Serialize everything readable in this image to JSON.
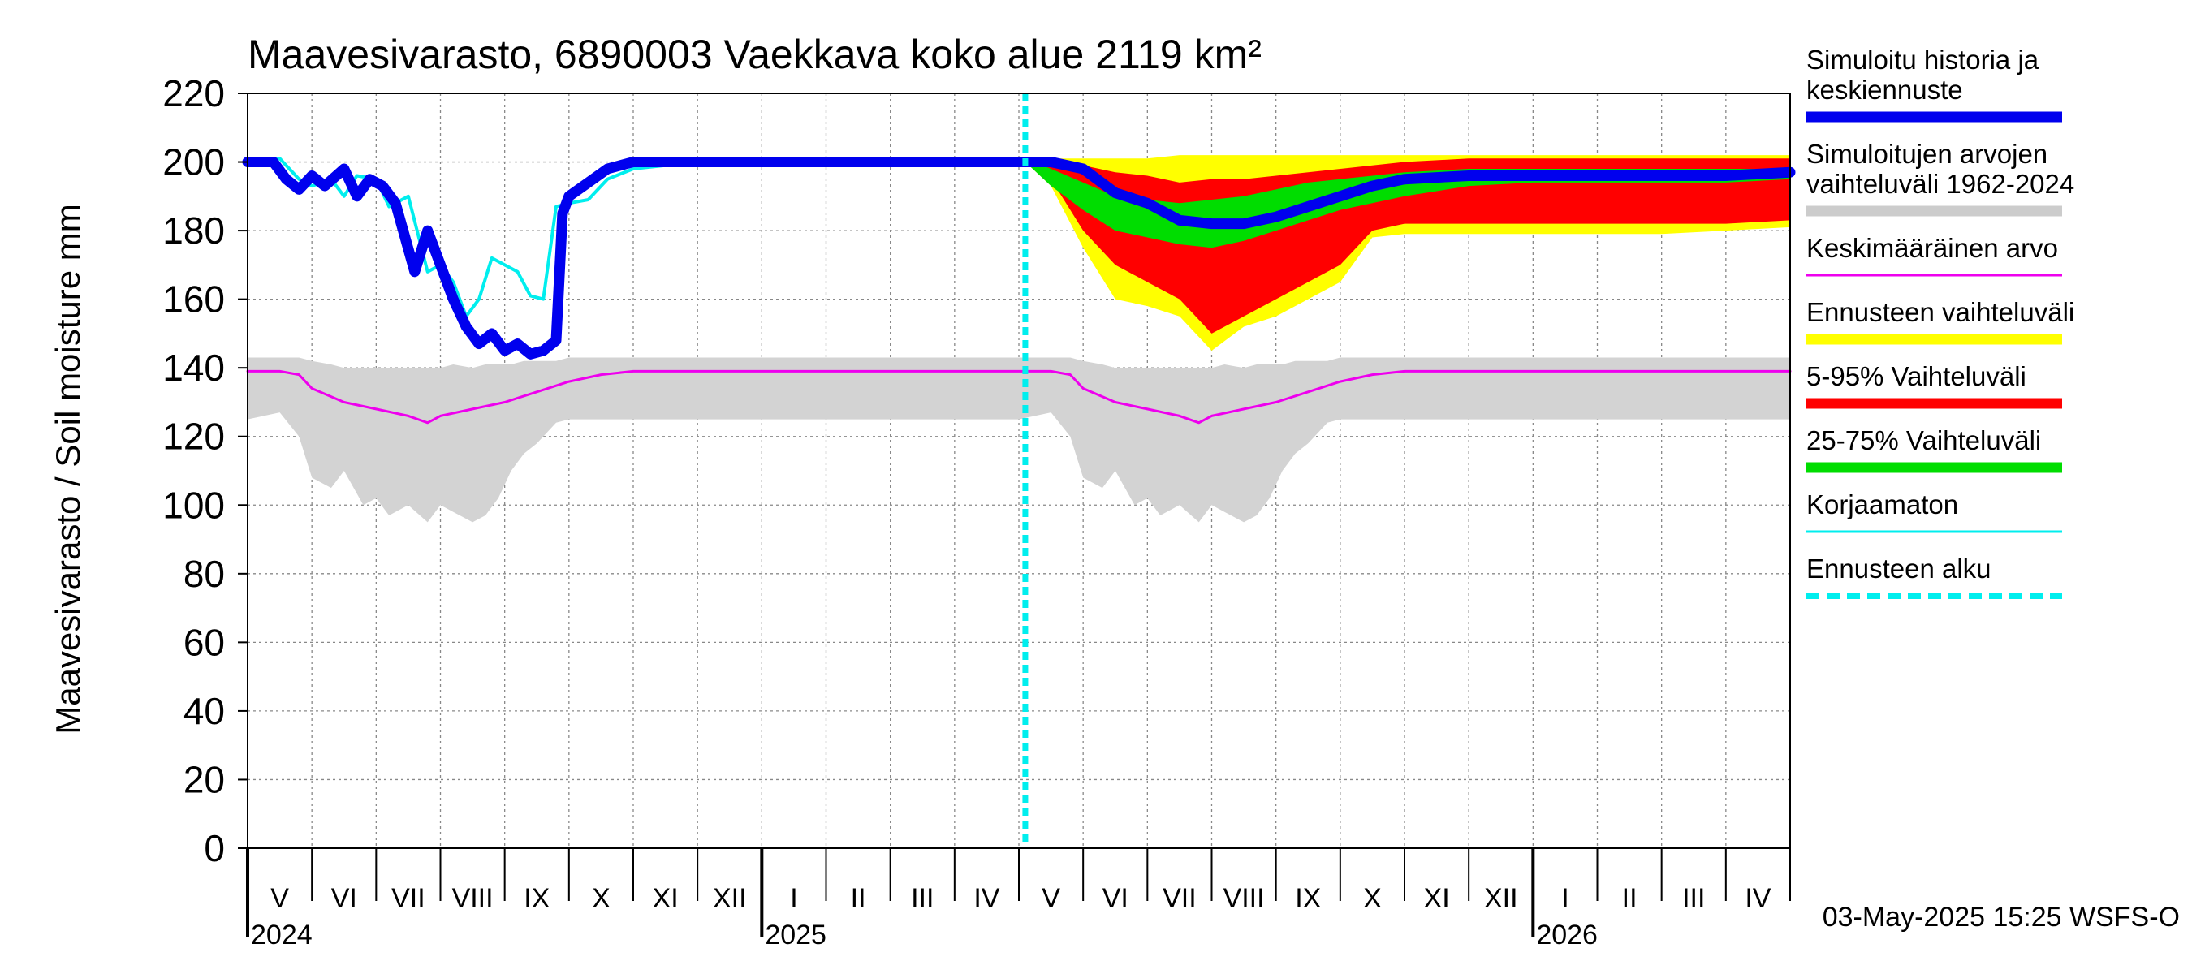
{
  "chart_data": {
    "type": "area",
    "title": "Maavesivarasto, 6890003 Vaekkava koko alue 2119 km²",
    "ylabel": "Maavesivarasto / Soil moisture   mm",
    "ylim": [
      0,
      220
    ],
    "yticks": [
      0,
      20,
      40,
      60,
      80,
      100,
      120,
      140,
      160,
      180,
      200,
      220
    ],
    "x_unit": "months since 2024-05-01",
    "xlim": [
      0,
      24
    ],
    "months": [
      "V",
      "VI",
      "VII",
      "VIII",
      "IX",
      "X",
      "XI",
      "XII",
      "I",
      "II",
      "III",
      "IV",
      "V",
      "VI",
      "VII",
      "VIII",
      "IX",
      "X",
      "XI",
      "XII",
      "I",
      "II",
      "III",
      "IV"
    ],
    "years": [
      {
        "label": "2024",
        "at": 0
      },
      {
        "label": "2025",
        "at": 8
      },
      {
        "label": "2026",
        "at": 20
      }
    ],
    "forecast_start": 12.1,
    "footer": "03-May-2025 15:25 WSFS-O",
    "legend": [
      {
        "key": "simulated",
        "label": [
          "Simuloitu historia ja",
          "keskiennuste"
        ],
        "color": "#0000ee",
        "style": "thick"
      },
      {
        "key": "range_hist",
        "label": [
          "Simuloitujen arvojen",
          "vaihteluväli 1962-2024"
        ],
        "color": "#cccccc",
        "style": "thick"
      },
      {
        "key": "mean",
        "label": [
          "Keskimääräinen arvo"
        ],
        "color": "#ee00ee",
        "style": "thin"
      },
      {
        "key": "fc_range",
        "label": [
          "Ennusteen vaihteluväli"
        ],
        "color": "#ffff00",
        "style": "thick"
      },
      {
        "key": "p5_95",
        "label": [
          "5-95% Vaihteluväli"
        ],
        "color": "#ff0000",
        "style": "thick"
      },
      {
        "key": "p25_75",
        "label": [
          "25-75% Vaihteluväli"
        ],
        "color": "#00dd00",
        "style": "thick"
      },
      {
        "key": "uncorrected",
        "label": [
          "Korjaamaton"
        ],
        "color": "#00eeee",
        "style": "thin"
      },
      {
        "key": "fc_start",
        "label": [
          "Ennusteen alku"
        ],
        "color": "#00eeee",
        "style": "dashed"
      }
    ],
    "series": [
      {
        "name": "Simuloitujen arvojen vaihteluväli 1962-2024",
        "x": [
          0,
          0.5,
          0.8,
          1,
          1.3,
          1.5,
          1.8,
          2,
          2.2,
          2.5,
          2.8,
          3,
          3.2,
          3.5,
          3.7,
          3.9,
          4.1,
          4.3,
          4.5,
          4.8,
          5,
          5.5,
          6,
          7,
          8,
          9,
          10,
          11,
          12
        ],
        "upper": [
          143,
          143,
          143,
          142,
          141,
          140,
          140,
          140,
          140,
          140,
          140,
          140,
          141,
          140,
          141,
          141,
          141,
          142,
          142,
          142,
          143,
          143,
          143,
          143,
          143,
          143,
          143,
          143,
          143
        ],
        "lower": [
          125,
          127,
          120,
          108,
          105,
          110,
          100,
          102,
          97,
          100,
          95,
          100,
          98,
          95,
          97,
          102,
          110,
          115,
          118,
          124,
          125,
          125,
          125,
          125,
          125,
          125,
          125,
          125,
          125
        ]
      },
      {
        "name": "Simuloitujen arvojen vaihteluväli (ennuste)",
        "x": [
          12,
          12.5,
          12.8,
          13,
          13.3,
          13.5,
          13.8,
          14,
          14.2,
          14.5,
          14.8,
          15,
          15.2,
          15.5,
          15.7,
          15.9,
          16.1,
          16.3,
          16.5,
          16.8,
          17,
          17.5,
          18,
          19,
          20,
          21,
          22,
          23,
          24
        ],
        "upper": [
          143,
          143,
          143,
          142,
          141,
          140,
          140,
          140,
          140,
          140,
          140,
          140,
          141,
          140,
          141,
          141,
          141,
          142,
          142,
          142,
          143,
          143,
          143,
          143,
          143,
          143,
          143,
          143,
          143
        ],
        "lower": [
          125,
          127,
          120,
          108,
          105,
          110,
          100,
          102,
          97,
          100,
          95,
          100,
          98,
          95,
          97,
          102,
          110,
          115,
          118,
          124,
          125,
          125,
          125,
          125,
          125,
          125,
          125,
          125,
          125
        ]
      },
      {
        "name": "Keskimääräinen arvo",
        "x": [
          0,
          0.5,
          0.8,
          1,
          1.5,
          2,
          2.5,
          2.8,
          3,
          3.5,
          4,
          4.5,
          5,
          5.5,
          6,
          7,
          8,
          9,
          10,
          11,
          12,
          12.5,
          12.8,
          13,
          13.5,
          14,
          14.5,
          14.8,
          15,
          15.5,
          16,
          16.5,
          17,
          17.5,
          18,
          19,
          20,
          21,
          22,
          23,
          24
        ],
        "y": [
          139,
          139,
          138,
          134,
          130,
          128,
          126,
          124,
          126,
          128,
          130,
          133,
          136,
          138,
          139,
          139,
          139,
          139,
          139,
          139,
          139,
          139,
          138,
          134,
          130,
          128,
          126,
          124,
          126,
          128,
          130,
          133,
          136,
          138,
          139,
          139,
          139,
          139,
          139,
          139,
          139
        ]
      },
      {
        "name": "Ennusteen vaihteluväli",
        "x": [
          12.1,
          12.5,
          13,
          13.5,
          14,
          14.5,
          15,
          15.5,
          16,
          16.5,
          17,
          17.5,
          18,
          19,
          20,
          21,
          22,
          23,
          24
        ],
        "upper": [
          201,
          201,
          201,
          201,
          201,
          202,
          202,
          202,
          202,
          202,
          202,
          202,
          202,
          202,
          202,
          202,
          202,
          202,
          202
        ],
        "lower": [
          200,
          193,
          175,
          160,
          158,
          155,
          145,
          152,
          155,
          160,
          165,
          178,
          179,
          179,
          179,
          179,
          179,
          180,
          181
        ]
      },
      {
        "name": "5-95% Vaihteluväli",
        "x": [
          12.1,
          12.5,
          13,
          13.5,
          14,
          14.5,
          15,
          15.5,
          16,
          16.5,
          17,
          17.5,
          18,
          19,
          20,
          21,
          22,
          23,
          24
        ],
        "upper": [
          201,
          200,
          199,
          197,
          196,
          194,
          195,
          195,
          196,
          197,
          198,
          199,
          200,
          201,
          201,
          201,
          201,
          201,
          201
        ],
        "lower": [
          200,
          195,
          180,
          170,
          165,
          160,
          150,
          155,
          160,
          165,
          170,
          180,
          182,
          182,
          182,
          182,
          182,
          182,
          183
        ]
      },
      {
        "name": "25-75% Vaihteluväli",
        "x": [
          12.1,
          12.5,
          13,
          13.5,
          14,
          14.5,
          15,
          15.5,
          16,
          16.5,
          17,
          17.5,
          18,
          19,
          20,
          21,
          22,
          23,
          24
        ],
        "upper": [
          201,
          198,
          194,
          190,
          189,
          188,
          189,
          190,
          192,
          194,
          195,
          196,
          197,
          198,
          198,
          198,
          198,
          198,
          198
        ],
        "lower": [
          200,
          193,
          186,
          180,
          178,
          176,
          175,
          177,
          180,
          183,
          186,
          188,
          190,
          193,
          194,
          194,
          194,
          194,
          195
        ]
      },
      {
        "name": "Korjaamaton",
        "x": [
          0,
          0.5,
          0.8,
          1,
          1.3,
          1.5,
          1.7,
          2,
          2.2,
          2.5,
          2.8,
          3,
          3.2,
          3.4,
          3.6,
          3.8,
          4,
          4.2,
          4.4,
          4.6,
          4.8,
          5,
          5.3,
          5.6,
          6,
          6.5,
          7,
          8,
          9,
          10,
          11,
          12.1
        ],
        "y": [
          199,
          201,
          195,
          193,
          195,
          190,
          196,
          195,
          187,
          190,
          168,
          170,
          165,
          155,
          160,
          172,
          170,
          168,
          161,
          160,
          187,
          188,
          189,
          195,
          198,
          199,
          199,
          200,
          200,
          200,
          200,
          200
        ]
      },
      {
        "name": "Simuloitu historia ja keskiennuste",
        "x": [
          0,
          0.4,
          0.6,
          0.8,
          1,
          1.2,
          1.5,
          1.7,
          1.9,
          2.1,
          2.3,
          2.6,
          2.8,
          3,
          3.2,
          3.4,
          3.6,
          3.8,
          4,
          4.2,
          4.4,
          4.6,
          4.8,
          4.9,
          5,
          5.3,
          5.6,
          6,
          6.5,
          7,
          8,
          9,
          10,
          11,
          12,
          12.5,
          13,
          13.5,
          14,
          14.5,
          15,
          15.5,
          16,
          16.5,
          17,
          17.5,
          18,
          19,
          20,
          21,
          22,
          23,
          24
        ],
        "y": [
          200,
          200,
          195,
          192,
          196,
          193,
          198,
          190,
          195,
          193,
          188,
          168,
          180,
          170,
          160,
          152,
          147,
          150,
          145,
          147,
          144,
          145,
          148,
          185,
          190,
          194,
          198,
          200,
          200,
          200,
          200,
          200,
          200,
          200,
          200,
          200,
          198,
          191,
          188,
          183,
          182,
          182,
          184,
          187,
          190,
          193,
          195,
          196,
          196,
          196,
          196,
          196,
          197
        ]
      }
    ]
  }
}
